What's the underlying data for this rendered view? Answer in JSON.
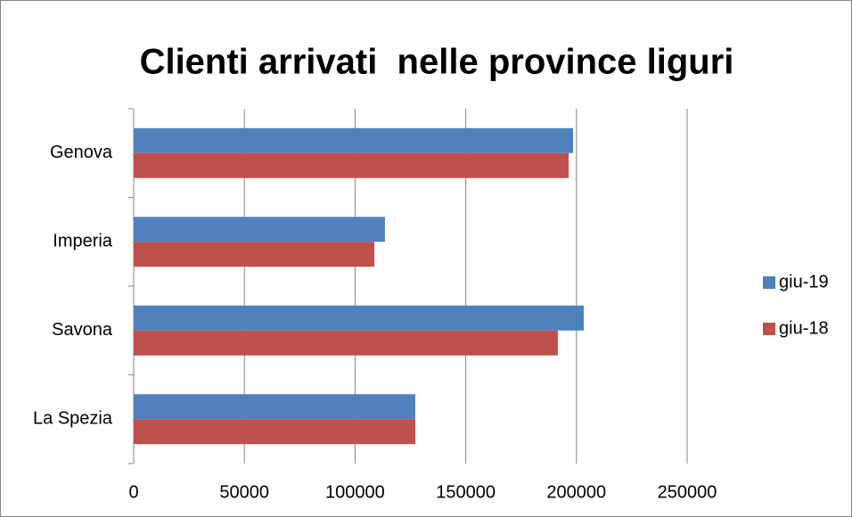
{
  "chart_data": {
    "type": "bar",
    "orientation": "horizontal",
    "title": "Clienti arrivati  nelle province liguri",
    "categories": [
      "Genova",
      "Imperia",
      "Savona",
      "La Spezia"
    ],
    "series": [
      {
        "name": "giu-19",
        "color": "#4f81bd",
        "values": [
          198500,
          113500,
          203300,
          127200
        ]
      },
      {
        "name": "giu-18",
        "color": "#c0504d",
        "values": [
          196500,
          108700,
          191600,
          127200
        ]
      }
    ],
    "xlim": [
      0,
      250000
    ],
    "xticks": [
      0,
      50000,
      100000,
      150000,
      200000,
      250000
    ],
    "grid": true,
    "legend": "right"
  }
}
